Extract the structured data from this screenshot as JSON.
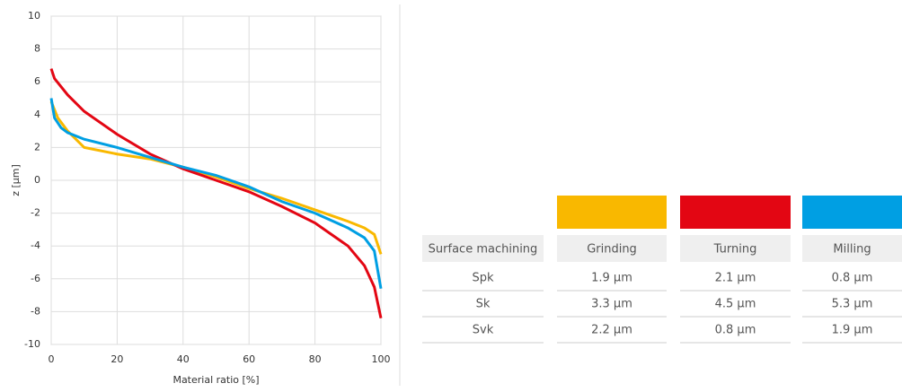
{
  "chart_data": {
    "type": "line",
    "x_label": "Material ratio [%]",
    "y_label": "z [µm]",
    "xlim": [
      0,
      100
    ],
    "xticks": [
      0,
      20,
      40,
      60,
      80,
      100
    ],
    "ylim": [
      -10,
      10
    ],
    "yticks": [
      -10,
      -8,
      -6,
      -4,
      -2,
      0,
      2,
      4,
      6,
      8,
      10
    ],
    "grid": true,
    "series": [
      {
        "color": "#f9b800",
        "x": [
          0,
          2,
          5,
          10,
          20,
          30,
          40,
          50,
          60,
          70,
          80,
          90,
          95,
          98,
          100
        ],
        "values": [
          4.8,
          3.8,
          3.0,
          2.0,
          1.6,
          1.3,
          0.8,
          0.2,
          -0.5,
          -1.1,
          -1.8,
          -2.5,
          -2.9,
          -3.3,
          -4.5
        ]
      },
      {
        "color": "#e30613",
        "x": [
          0,
          1,
          5,
          10,
          20,
          30,
          40,
          50,
          60,
          70,
          80,
          90,
          95,
          98,
          100
        ],
        "values": [
          6.8,
          6.2,
          5.2,
          4.2,
          2.8,
          1.6,
          0.7,
          0,
          -0.7,
          -1.6,
          -2.6,
          -4.0,
          -5.2,
          -6.5,
          -8.4
        ]
      },
      {
        "color": "#009fe3",
        "x": [
          0,
          1,
          3,
          5,
          10,
          20,
          30,
          40,
          50,
          60,
          70,
          80,
          90,
          95,
          98,
          100
        ],
        "values": [
          5.0,
          3.8,
          3.2,
          2.9,
          2.5,
          2.0,
          1.4,
          0.8,
          0.3,
          -0.4,
          -1.3,
          -2.0,
          -2.9,
          -3.5,
          -4.3,
          -6.6
        ]
      }
    ]
  },
  "table": {
    "header": [
      "Surface machining",
      "Grinding",
      "Turning",
      "Milling"
    ],
    "rows": [
      [
        "Spk",
        "1.9 µm",
        "2.1 µm",
        "0.8 µm"
      ],
      [
        "Sk",
        "3.3 µm",
        "4.5 µm",
        "5.3 µm"
      ],
      [
        "Svk",
        "2.2 µm",
        "0.8 µm",
        "1.9 µm"
      ]
    ]
  }
}
